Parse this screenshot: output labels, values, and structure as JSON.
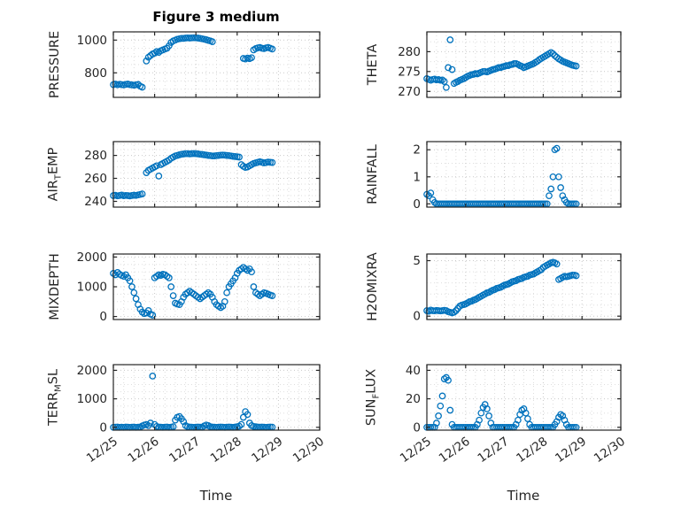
{
  "title": "Figure 3 medium",
  "xlabel": "Time",
  "x_tick_labels": [
    "12/25",
    "12/26",
    "12/27",
    "12/28",
    "12/29",
    "12/30"
  ],
  "marker_color": "#0072BD",
  "chart_data": {
    "type": "scatter",
    "x_unit": "days since 12/25",
    "x_start": 0,
    "x_step": 0.05,
    "xlim": [
      0,
      5
    ],
    "x_minor_grid_step": 0.25,
    "subplots": [
      {
        "name": "pressure",
        "ylabel": {
          "pre": "PRESSURE",
          "sub": "",
          "post": ""
        },
        "yticks": [
          800,
          1000
        ],
        "ylim": [
          650,
          1050
        ],
        "y_grid_step": 50,
        "y": [
          728,
          731,
          727,
          730,
          728,
          726,
          729,
          731,
          728,
          726,
          724,
          727,
          729,
          718,
          712,
          null,
          872,
          895,
          905,
          915,
          920,
          930,
          925,
          935,
          940,
          945,
          950,
          965,
          985,
          995,
          1000,
          1005,
          1008,
          1010,
          1010,
          1012,
          1013,
          1012,
          1013,
          1014,
          1013,
          1012,
          1010,
          1008,
          1005,
          1002,
          998,
          995,
          990,
          null,
          null,
          null,
          null,
          null,
          null,
          null,
          null,
          null,
          null,
          null,
          null,
          null,
          null,
          888,
          884,
          890,
          886,
          892,
          940,
          948,
          952,
          955,
          950,
          948,
          952,
          955,
          950,
          945
        ]
      },
      {
        "name": "theta",
        "ylabel": {
          "pre": "THETA",
          "sub": "",
          "post": ""
        },
        "yticks": [
          270,
          275,
          280
        ],
        "ylim": [
          268.5,
          285
        ],
        "y_grid_step": 2.5,
        "y": [
          273.2,
          273.0,
          272.8,
          273.0,
          273.1,
          272.9,
          273.0,
          272.8,
          272.9,
          272.5,
          271.0,
          276.0,
          283.0,
          275.5,
          272.0,
          272.3,
          272.5,
          272.8,
          273.0,
          273.2,
          273.5,
          273.8,
          274.0,
          274.2,
          274.3,
          274.5,
          274.4,
          274.6,
          274.8,
          275.0,
          275.0,
          274.9,
          275.1,
          275.3,
          275.5,
          275.6,
          275.8,
          276.0,
          276.0,
          276.2,
          276.3,
          276.5,
          276.5,
          276.7,
          276.8,
          277.0,
          277.0,
          276.8,
          276.5,
          276.3,
          276.0,
          276.2,
          276.4,
          276.6,
          276.8,
          277.0,
          277.3,
          277.6,
          278.0,
          278.3,
          278.6,
          278.9,
          279.2,
          279.5,
          279.8,
          279.5,
          279.0,
          278.6,
          278.2,
          277.9,
          277.6,
          277.4,
          277.2,
          277.0,
          276.8,
          276.6,
          276.5,
          276.4
        ]
      },
      {
        "name": "airtemp",
        "ylabel": {
          "pre": "AIR",
          "sub": "T",
          "post": "EMP"
        },
        "yticks": [
          240,
          260,
          280
        ],
        "ylim": [
          235,
          292
        ],
        "y_grid_step": 5,
        "y": [
          245.0,
          245.3,
          244.8,
          245.1,
          245.5,
          244.9,
          245.2,
          245.0,
          244.7,
          245.1,
          245.4,
          245.2,
          245.6,
          246.0,
          246.5,
          null,
          265.0,
          267.0,
          268.0,
          269.0,
          270.0,
          271.0,
          262.0,
          272.0,
          273.0,
          274.0,
          275.0,
          276.0,
          277.5,
          278.5,
          279.5,
          280.0,
          280.5,
          281.0,
          281.2,
          281.5,
          281.5,
          281.3,
          281.5,
          281.6,
          281.5,
          281.3,
          281.0,
          280.8,
          280.5,
          280.3,
          280.0,
          279.8,
          279.5,
          279.6,
          279.8,
          280.0,
          280.2,
          280.3,
          280.2,
          280.0,
          279.8,
          279.5,
          279.2,
          279.0,
          278.8,
          278.5,
          272.0,
          270.5,
          269.5,
          270.0,
          271.0,
          272.0,
          273.0,
          273.5,
          274.0,
          274.5,
          274.0,
          273.5,
          273.8,
          274.2,
          274.0,
          273.8
        ]
      },
      {
        "name": "rainfall",
        "ylabel": {
          "pre": "RAINFALL",
          "sub": "",
          "post": ""
        },
        "yticks": [
          0,
          1,
          2
        ],
        "ylim": [
          -0.12,
          2.3
        ],
        "y_grid_step": 0.5,
        "y": [
          0.35,
          0.3,
          0.4,
          0.15,
          0.05,
          0,
          0,
          0,
          0,
          0,
          0,
          0,
          0,
          0,
          0,
          0,
          0,
          0,
          0,
          0,
          0,
          0,
          0,
          0,
          0,
          0,
          0,
          0,
          0,
          0,
          0,
          0,
          0,
          0,
          0,
          0,
          0,
          0,
          0,
          0,
          0,
          0,
          0,
          0,
          0,
          0,
          0,
          0,
          0,
          0,
          0,
          0,
          0,
          0,
          0,
          0,
          0,
          0,
          0,
          0,
          0,
          0,
          0,
          0.3,
          0.55,
          1.0,
          2.0,
          2.05,
          1.0,
          0.6,
          0.3,
          0.15,
          0.05,
          0,
          0,
          0,
          0,
          0
        ]
      },
      {
        "name": "mixdepth",
        "ylabel": {
          "pre": "MIXDEPTH",
          "sub": "",
          "post": ""
        },
        "yticks": [
          0,
          1000,
          2000
        ],
        "ylim": [
          -100,
          2100
        ],
        "y_grid_step": 250,
        "y": [
          1450,
          1400,
          1480,
          1420,
          1380,
          1350,
          1400,
          1300,
          1200,
          1000,
          800,
          600,
          400,
          250,
          150,
          100,
          120,
          200,
          80,
          50,
          1300,
          1350,
          1400,
          1380,
          1420,
          1400,
          1350,
          1300,
          1000,
          700,
          450,
          420,
          400,
          500,
          650,
          750,
          800,
          850,
          800,
          750,
          700,
          650,
          600,
          650,
          700,
          750,
          800,
          750,
          650,
          500,
          400,
          350,
          300,
          350,
          500,
          800,
          1000,
          1100,
          1200,
          1300,
          1450,
          1550,
          1600,
          1650,
          1600,
          1550,
          1600,
          1500,
          1000,
          800,
          750,
          700,
          750,
          800,
          780,
          750,
          720,
          700
        ]
      },
      {
        "name": "h2omixra",
        "ylabel": {
          "pre": "H2OMIXRA",
          "sub": "",
          "post": ""
        },
        "yticks": [
          0,
          5
        ],
        "ylim": [
          -0.3,
          5.6
        ],
        "y_grid_step": 1,
        "y": [
          0.5,
          0.45,
          0.55,
          0.5,
          0.48,
          0.52,
          0.5,
          0.47,
          0.5,
          0.53,
          0.5,
          0.4,
          0.35,
          0.3,
          0.35,
          0.5,
          0.7,
          0.9,
          1.0,
          1.05,
          1.1,
          1.2,
          1.3,
          1.35,
          1.45,
          1.5,
          1.6,
          1.7,
          1.8,
          1.9,
          2.0,
          2.1,
          2.15,
          2.25,
          2.35,
          2.4,
          2.5,
          2.55,
          2.6,
          2.7,
          2.8,
          2.85,
          2.9,
          3.0,
          3.1,
          3.15,
          3.2,
          3.3,
          3.35,
          3.4,
          3.5,
          3.55,
          3.6,
          3.7,
          3.75,
          3.8,
          3.9,
          4.0,
          4.1,
          4.2,
          4.4,
          4.5,
          4.6,
          4.7,
          4.8,
          4.85,
          4.8,
          4.7,
          3.3,
          3.4,
          3.5,
          3.6,
          3.55,
          3.6,
          3.65,
          3.7,
          3.7,
          3.65
        ]
      },
      {
        "name": "terrmsl",
        "ylabel": {
          "pre": "TERR",
          "sub": "M",
          "post": "SL"
        },
        "yticks": [
          0,
          1000,
          2000
        ],
        "ylim": [
          -100,
          2200
        ],
        "y_grid_step": 250,
        "y": [
          0,
          5,
          10,
          0,
          5,
          0,
          10,
          5,
          0,
          5,
          10,
          0,
          5,
          10,
          50,
          80,
          100,
          60,
          150,
          1800,
          100,
          30,
          10,
          5,
          0,
          5,
          10,
          0,
          5,
          20,
          250,
          350,
          380,
          300,
          200,
          60,
          20,
          10,
          5,
          0,
          5,
          10,
          5,
          0,
          50,
          80,
          60,
          20,
          10,
          5,
          0,
          5,
          10,
          5,
          0,
          5,
          10,
          5,
          0,
          10,
          20,
          40,
          100,
          350,
          550,
          450,
          150,
          60,
          30,
          20,
          10,
          5,
          10,
          5,
          0,
          5,
          10,
          5
        ]
      },
      {
        "name": "sunflux",
        "ylabel": {
          "pre": "SUN",
          "sub": "F",
          "post": "LUX"
        },
        "yticks": [
          0,
          20,
          40
        ],
        "ylim": [
          -2,
          44
        ],
        "y_grid_step": 10,
        "y": [
          0,
          0,
          0,
          0,
          0,
          3,
          8,
          15,
          22,
          34,
          35,
          33,
          12,
          2,
          0,
          0,
          0,
          0,
          0,
          0,
          0,
          0,
          0,
          0,
          0,
          0,
          2,
          5,
          10,
          14,
          16,
          13,
          8,
          3,
          0,
          0,
          0,
          0,
          0,
          0,
          0,
          0,
          0,
          0,
          0,
          0,
          2,
          5,
          9,
          12,
          13,
          10,
          6,
          2,
          0,
          0,
          0,
          0,
          0,
          0,
          0,
          0,
          0,
          0,
          0,
          0,
          2,
          4,
          7,
          9,
          8,
          5,
          2,
          0,
          0,
          0,
          0,
          0
        ]
      }
    ]
  }
}
